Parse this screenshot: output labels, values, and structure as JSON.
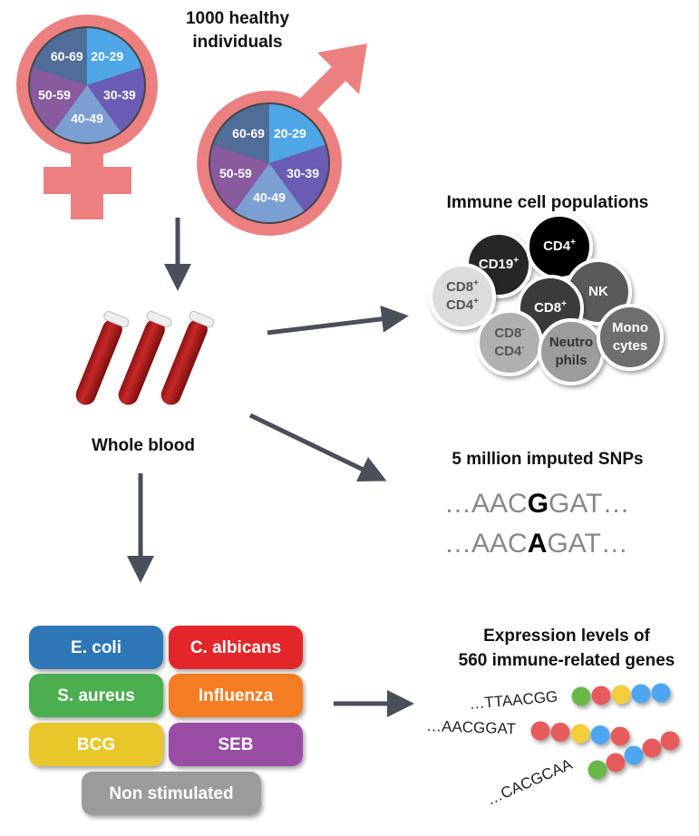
{
  "cohort": {
    "title_line1": "1000 healthy",
    "title_line2": "individuals",
    "age_groups": [
      "20-29",
      "30-39",
      "40-49",
      "50-59",
      "60-69"
    ],
    "age_colors": [
      "#4fa6e6",
      "#6a5cb4",
      "#7c9fd3",
      "#8a5a9f",
      "#506c98"
    ],
    "symbol_color": "#ec8080"
  },
  "sample": {
    "label": "Whole blood"
  },
  "immune": {
    "title": "Immune cell populations",
    "cells": [
      {
        "label1": "CD19",
        "sup1": "+",
        "label2": "",
        "sup2": "",
        "fill": "#262626",
        "text": "#fff"
      },
      {
        "label1": "CD4",
        "sup1": "+",
        "label2": "",
        "sup2": "",
        "fill": "#050505",
        "text": "#fff"
      },
      {
        "label1": "NK",
        "sup1": "",
        "label2": "",
        "sup2": "",
        "fill": "#5a5a5a",
        "text": "#fff"
      },
      {
        "label1": "CD8",
        "sup1": "+",
        "label2": "CD4",
        "sup2": "+",
        "fill": "#dcdcdc",
        "text": "#555"
      },
      {
        "label1": "CD8",
        "sup1": "+",
        "label2": "",
        "sup2": "",
        "fill": "#3a3a3a",
        "text": "#fff"
      },
      {
        "label1": "CD8",
        "sup1": "-",
        "label2": "CD4",
        "sup2": "-",
        "fill": "#b0b0b0",
        "text": "#555"
      },
      {
        "label1": "Neutro",
        "sup1": "",
        "label2": "phils",
        "sup2": "",
        "fill": "#9c9c9c",
        "text": "#333"
      },
      {
        "label1": "Mono",
        "sup1": "",
        "label2": "cytes",
        "sup2": "",
        "fill": "#6e6e6e",
        "text": "#fff"
      }
    ]
  },
  "snps": {
    "title": "5 million imputed SNPs",
    "seq1": {
      "prefix": "…AAC",
      "variant": "G",
      "suffix": "GAT…"
    },
    "seq2": {
      "prefix": "…AAC",
      "variant": "A",
      "suffix": "GAT…"
    }
  },
  "stimuli": [
    {
      "label": "E. coli",
      "color": "#2f76b5"
    },
    {
      "label": "C. albicans",
      "color": "#e2282b"
    },
    {
      "label": "S. aureus",
      "color": "#4cae4f"
    },
    {
      "label": "Influenza",
      "color": "#f47c22"
    },
    {
      "label": "BCG",
      "color": "#e9c62c"
    },
    {
      "label": "SEB",
      "color": "#9a4da5"
    },
    {
      "label": "Non stimulated",
      "color": "#9b9b9b"
    }
  ],
  "expression": {
    "title_line1": "Expression levels of",
    "title_line2": "560 immune-related genes",
    "rows": [
      {
        "seq": "…TTAACGG",
        "beads": [
          "#69b84a",
          "#e65c5c",
          "#f3cd3e",
          "#4ea6f0",
          "#4ea6f0"
        ]
      },
      {
        "seq": "…AACGGAT",
        "beads": [
          "#e65c5c",
          "#e65c5c",
          "#f3cd3e",
          "#4ea6f0",
          "#e65c5c"
        ]
      },
      {
        "seq": "…CACGCAA",
        "beads": [
          "#69b84a",
          "#e65c5c",
          "#4ea6f0",
          "#e65c5c",
          "#e65c5c"
        ]
      }
    ]
  },
  "arrow_color": "#4a4f5a"
}
